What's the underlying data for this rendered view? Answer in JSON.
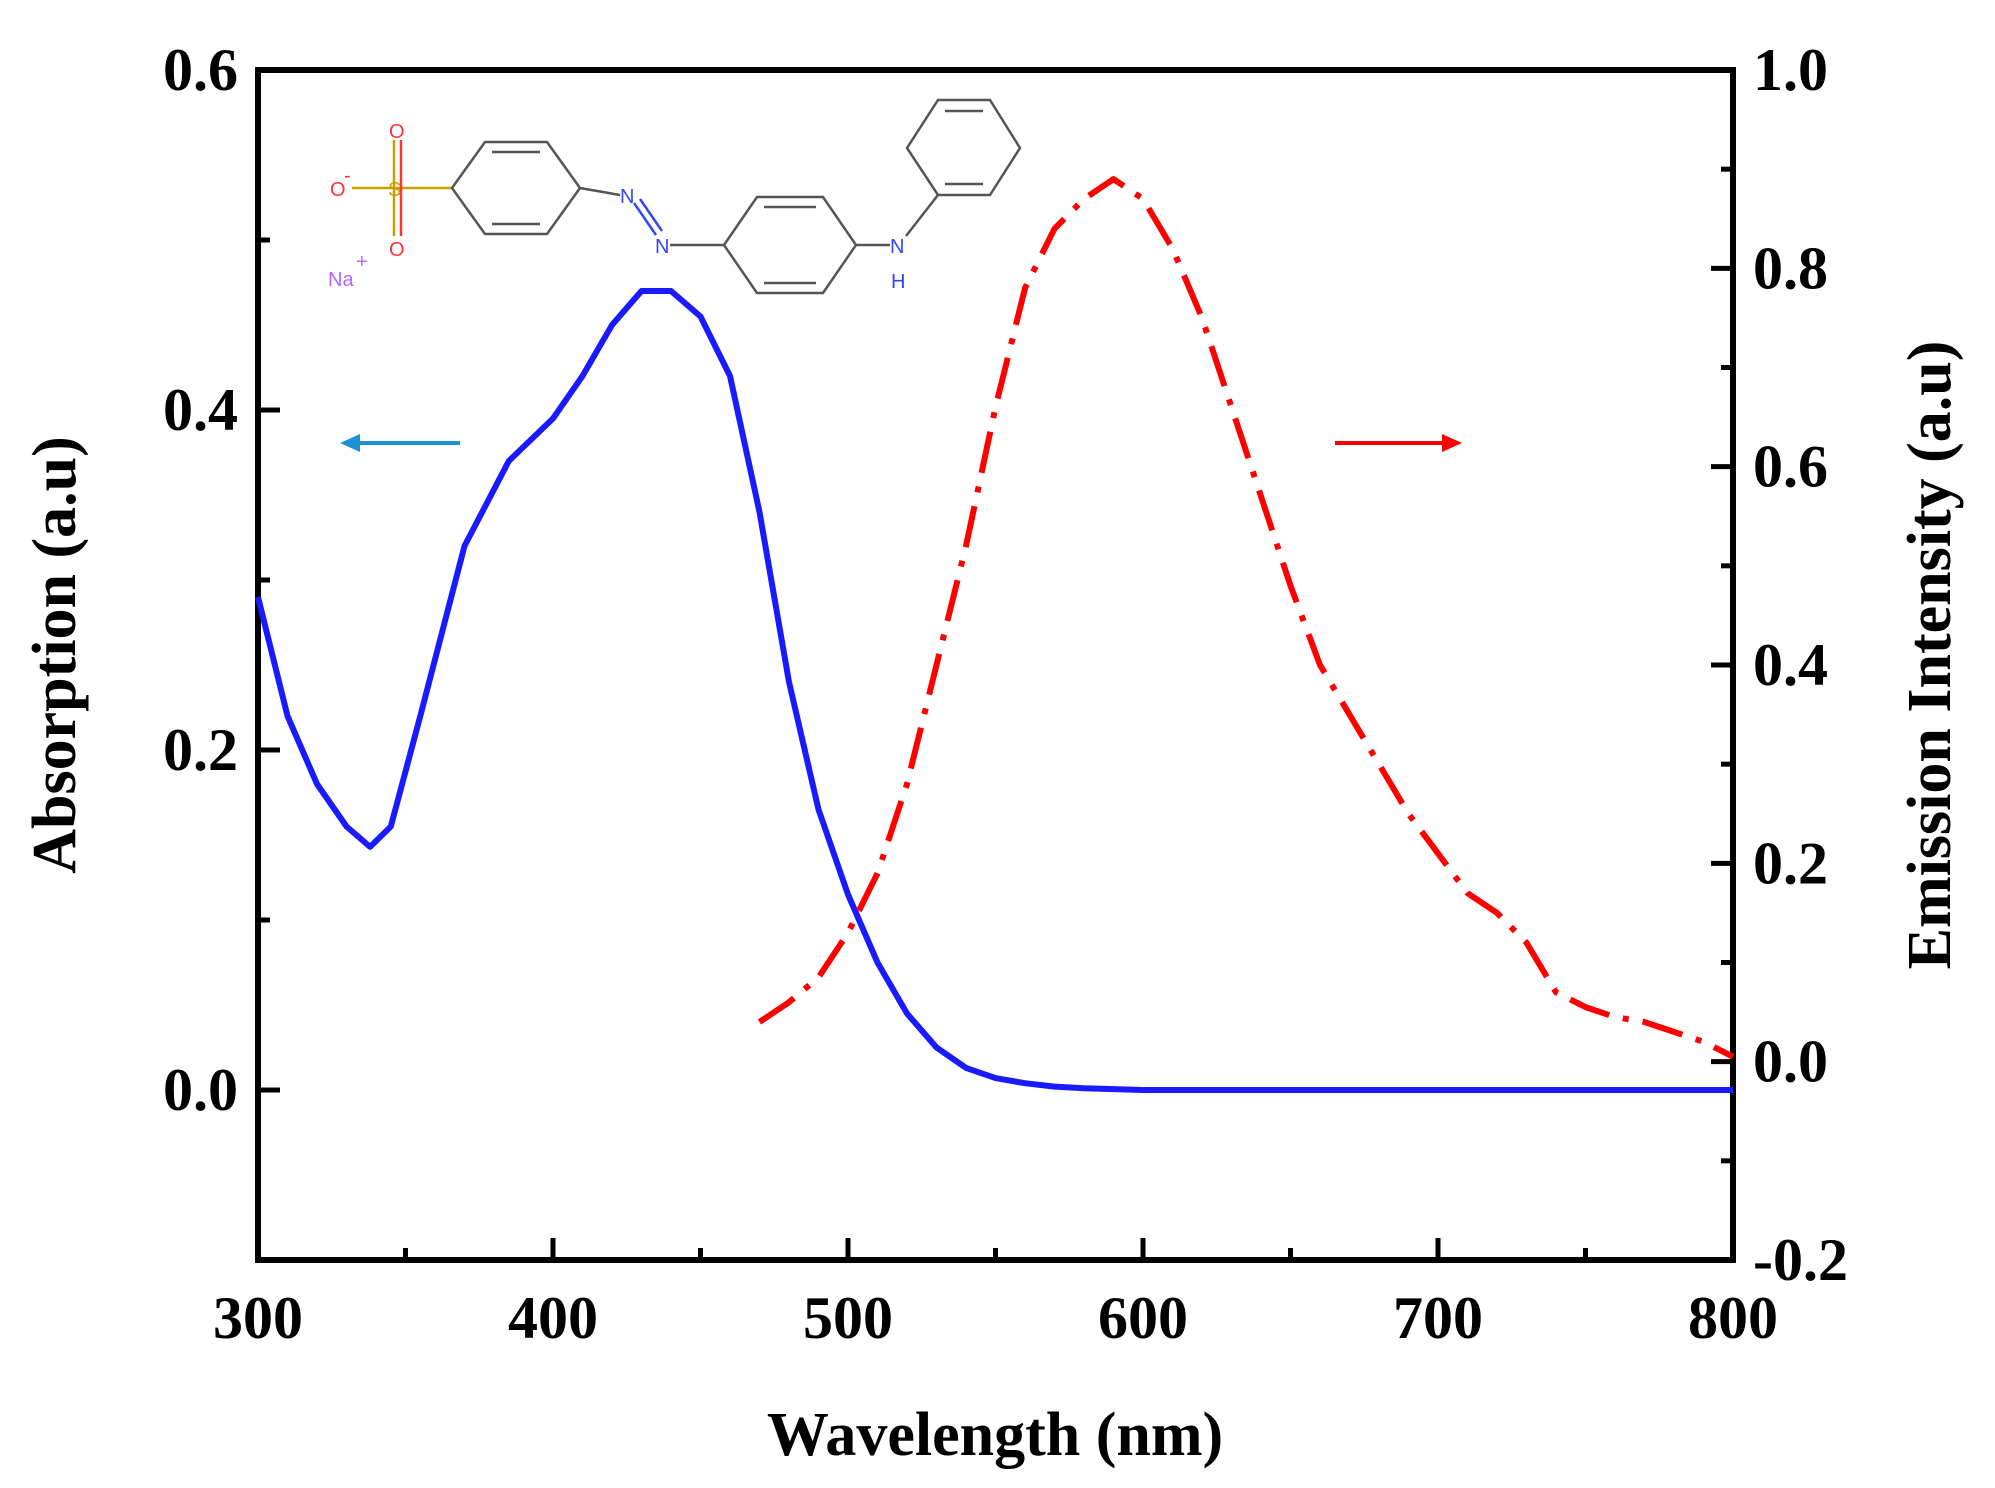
{
  "chart_data": {
    "type": "line",
    "xlabel": "Wavelength (nm)",
    "ylabel_left": "Absorption (a.u)",
    "ylabel_right": "Emission Intensity (a.u)",
    "xlim": [
      300,
      800
    ],
    "ylim_left": [
      -0.1,
      0.6
    ],
    "ylim_right": [
      -0.2,
      1.0
    ],
    "x_ticks": [
      300,
      400,
      500,
      600,
      700,
      800
    ],
    "x_tick_labels": [
      "300",
      "400",
      "500",
      "600",
      "700",
      "800"
    ],
    "y_left_ticks": [
      0.0,
      0.2,
      0.4,
      0.6
    ],
    "y_left_tick_labels": [
      "0.0",
      "0.2",
      "0.4",
      "0.6"
    ],
    "y_right_ticks": [
      -0.2,
      0.0,
      0.2,
      0.4,
      0.6,
      0.8,
      1.0
    ],
    "y_right_tick_labels": [
      "-0.2",
      "0.0",
      "0.2",
      "0.4",
      "0.6",
      "0.8",
      "1.0"
    ],
    "grid": false,
    "series": [
      {
        "name": "Absorption",
        "axis": "left",
        "style": "solid",
        "color": "#1a1aff",
        "x": [
          300,
          310,
          320,
          330,
          338,
          345,
          355,
          370,
          385,
          400,
          410,
          420,
          430,
          440,
          450,
          460,
          470,
          480,
          490,
          500,
          510,
          520,
          530,
          540,
          550,
          560,
          570,
          580,
          600,
          650,
          700,
          800
        ],
        "y": [
          0.29,
          0.22,
          0.18,
          0.155,
          0.143,
          0.155,
          0.22,
          0.32,
          0.37,
          0.395,
          0.42,
          0.45,
          0.47,
          0.47,
          0.455,
          0.42,
          0.34,
          0.24,
          0.165,
          0.115,
          0.075,
          0.045,
          0.025,
          0.013,
          0.007,
          0.004,
          0.002,
          0.001,
          0.0,
          0.0,
          0.0,
          0.0
        ]
      },
      {
        "name": "Emission",
        "axis": "right",
        "style": "dash-dot",
        "color": "#ff0000",
        "x": [
          470,
          480,
          490,
          500,
          510,
          520,
          530,
          540,
          550,
          560,
          570,
          580,
          590,
          600,
          610,
          620,
          630,
          640,
          650,
          660,
          670,
          680,
          690,
          700,
          710,
          720,
          730,
          740,
          750,
          760,
          770,
          780,
          790,
          800
        ],
        "y": [
          0.04,
          0.06,
          0.085,
          0.13,
          0.19,
          0.28,
          0.4,
          0.52,
          0.66,
          0.78,
          0.84,
          0.87,
          0.89,
          0.87,
          0.82,
          0.75,
          0.66,
          0.57,
          0.48,
          0.4,
          0.35,
          0.3,
          0.25,
          0.21,
          0.17,
          0.15,
          0.12,
          0.07,
          0.055,
          0.045,
          0.04,
          0.03,
          0.02,
          0.005
        ]
      }
    ],
    "annotations": [
      {
        "type": "arrow",
        "direction": "left",
        "color": "#1e90d6",
        "points_to": "Absorption (a.u)"
      },
      {
        "type": "arrow",
        "direction": "right",
        "color": "#ff0000",
        "points_to": "Emission Intensity (a.u)"
      }
    ],
    "inset": {
      "type": "chemical-structure",
      "atom_labels": [
        "O",
        "O",
        "O",
        "S",
        "N",
        "N",
        "N",
        "H",
        "Na"
      ],
      "charge_labels": [
        "-",
        "+"
      ],
      "colors": {
        "oxygen": "#ff3333",
        "sulfur": "#c8a000",
        "nitrogen": "#3344ff",
        "sodium": "#b266ff",
        "bond": "#555555"
      }
    }
  }
}
